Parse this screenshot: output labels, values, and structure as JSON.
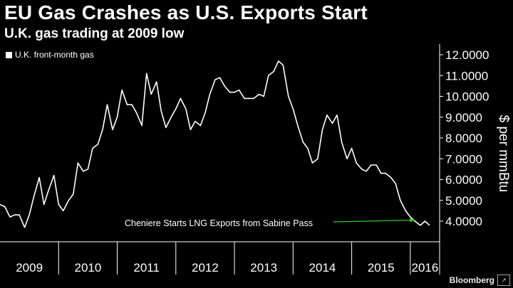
{
  "chart_data": {
    "type": "line",
    "title": "EU Gas Crashes as U.S. Exports Start",
    "subtitle": "U.K. gas trading at 2009 low",
    "ylabel": "$ per mmBtu",
    "ylim": [
      3.0,
      12.5
    ],
    "xlim": [
      2009.0,
      2016.5
    ],
    "y_ticks": [
      "4.0000",
      "5.0000",
      "6.0000",
      "7.0000",
      "8.0000",
      "9.0000",
      "10.0000",
      "11.0000",
      "12.0000"
    ],
    "y_tick_values": [
      4,
      5,
      6,
      7,
      8,
      9,
      10,
      11,
      12
    ],
    "x_tick_labels": [
      "2009",
      "2010",
      "2011",
      "2012",
      "2013",
      "2014",
      "2015",
      "2016"
    ],
    "x_year_starts": [
      2009,
      2010,
      2011,
      2012,
      2013,
      2014,
      2015,
      2016
    ],
    "grid": false,
    "legend_position": "top-left",
    "colors": {
      "line": "#ffffff",
      "annotation_arrow": "#35c82a",
      "background": "#000000"
    },
    "series": [
      {
        "name": "U.K. front-month gas",
        "x": [
          2009.0,
          2009.08,
          2009.17,
          2009.25,
          2009.33,
          2009.42,
          2009.5,
          2009.58,
          2009.67,
          2009.75,
          2009.83,
          2009.92,
          2010.0,
          2010.08,
          2010.17,
          2010.25,
          2010.33,
          2010.42,
          2010.5,
          2010.58,
          2010.67,
          2010.75,
          2010.83,
          2010.92,
          2011.0,
          2011.08,
          2011.17,
          2011.25,
          2011.33,
          2011.42,
          2011.5,
          2011.58,
          2011.67,
          2011.75,
          2011.83,
          2011.92,
          2012.0,
          2012.08,
          2012.17,
          2012.25,
          2012.33,
          2012.42,
          2012.5,
          2012.58,
          2012.67,
          2012.75,
          2012.83,
          2012.92,
          2013.0,
          2013.08,
          2013.17,
          2013.25,
          2013.33,
          2013.42,
          2013.5,
          2013.58,
          2013.67,
          2013.75,
          2013.83,
          2013.92,
          2014.0,
          2014.08,
          2014.17,
          2014.25,
          2014.33,
          2014.42,
          2014.5,
          2014.58,
          2014.67,
          2014.75,
          2014.83,
          2014.92,
          2015.0,
          2015.08,
          2015.17,
          2015.25,
          2015.33,
          2015.42,
          2015.5,
          2015.58,
          2015.67,
          2015.75,
          2015.83,
          2015.92,
          2016.0,
          2016.08,
          2016.17,
          2016.25,
          2016.33
        ],
        "values": [
          4.8,
          4.7,
          4.2,
          4.3,
          4.3,
          3.7,
          4.3,
          5.2,
          6.1,
          4.8,
          5.5,
          6.2,
          4.8,
          4.5,
          5.0,
          5.3,
          6.8,
          6.4,
          6.5,
          7.5,
          7.7,
          8.4,
          9.6,
          8.4,
          9.0,
          10.3,
          9.6,
          9.6,
          9.2,
          8.6,
          11.1,
          10.1,
          10.7,
          9.3,
          8.5,
          9.0,
          9.4,
          9.9,
          9.4,
          8.4,
          8.8,
          8.6,
          9.2,
          10.1,
          10.8,
          10.9,
          10.5,
          10.2,
          10.2,
          10.3,
          9.9,
          9.9,
          9.9,
          10.1,
          10.0,
          11.0,
          11.2,
          11.7,
          11.5,
          10.0,
          9.4,
          8.6,
          7.8,
          7.5,
          6.8,
          7.0,
          8.4,
          9.1,
          8.7,
          9.1,
          7.8,
          7.0,
          7.5,
          6.8,
          6.5,
          6.4,
          6.7,
          6.7,
          6.3,
          6.3,
          6.1,
          5.8,
          5.0,
          4.5,
          4.2,
          4.0,
          3.8,
          4.0,
          3.8
        ]
      }
    ],
    "annotation": {
      "text": "Cheniere Starts LNG Exports from Sabine Pass",
      "target_x": 2016.08,
      "target_y": 4.05
    }
  },
  "branding": {
    "name": "Bloomberg"
  }
}
